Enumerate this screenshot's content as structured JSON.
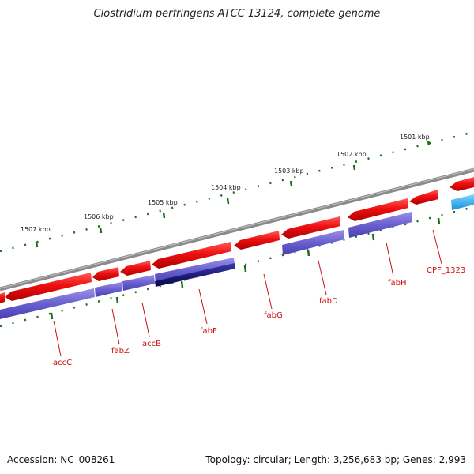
{
  "title": "Clostridium perfringens ATCC 13124, complete genome",
  "footer": {
    "accession": "Accession: NC_008261",
    "topology": "Topology: circular; Length: 3,256,683 bp; Genes: 2,993"
  },
  "scale_labels": [
    "1501 kbp",
    "1502 kbp",
    "1503 kbp",
    "1504 kbp",
    "1505 kbp",
    "1506 kbp",
    "1507 kbp"
  ],
  "gene_labels": [
    "accC",
    "fabZ",
    "accB",
    "fabF",
    "fabG",
    "fabD",
    "fabH",
    "CPF_1323"
  ],
  "colors": {
    "gene_arrow": "#e8111a",
    "cds_bar": "#6a5fcf",
    "cds_bar_highlight": "#0c0c7a",
    "other_feature": "#1aa3e8",
    "backbone": "#808080",
    "tick": "#1a6e1a",
    "label": "#cc1111"
  }
}
